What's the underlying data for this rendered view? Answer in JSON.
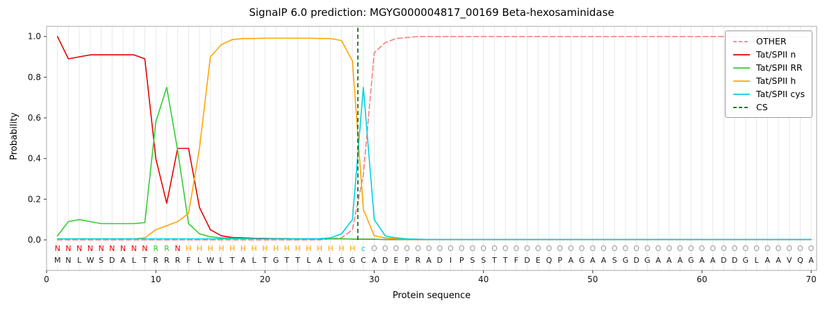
{
  "chart_data": {
    "type": "line",
    "title": "SignalP 6.0 prediction: MGYG000004817_00169 Beta-hexosaminidase",
    "xlabel": "Protein sequence",
    "ylabel": "Probability",
    "xlim": [
      0,
      70.5
    ],
    "ylim": [
      -0.15,
      1.05
    ],
    "xticks": [
      0,
      10,
      20,
      30,
      40,
      50,
      60,
      70
    ],
    "yticks": [
      0.0,
      0.2,
      0.4,
      0.6,
      0.8,
      1.0
    ],
    "grid": "vertical-per-residue",
    "grid_color": "#e8e8e8",
    "frame_color": "#a8a8a8",
    "legend_position": "upper right",
    "sequence": "MNLWSDALTRRRFLWLTALTGTTLALGGCADEPRADIPSSTTFDEQPAGAASGDGAAAGAADDGLAAVQA",
    "annotation": "NNNNNNNNNRRNHHHHHHHHHHHHHHHHcOOOOOOOOOOOOOOOOOOOOOOOOOOOOOOOOOOOOOOOOO",
    "annotation_colors": {
      "N": "#e50000",
      "R": "#32cd32",
      "H": "#ffa500",
      "c": "#00c4d8",
      "O": "#999999"
    },
    "sequence_color": "#1a1a1a",
    "cs": {
      "label": "CS",
      "x": 28.5,
      "color": "#006400",
      "dash": true
    },
    "positions": [
      1,
      2,
      3,
      4,
      5,
      6,
      7,
      8,
      9,
      10,
      11,
      12,
      13,
      14,
      15,
      16,
      17,
      18,
      19,
      20,
      21,
      22,
      23,
      24,
      25,
      26,
      27,
      28,
      29,
      30,
      31,
      32,
      33,
      34,
      35,
      36,
      37,
      38,
      39,
      40,
      41,
      42,
      43,
      44,
      45,
      46,
      47,
      48,
      49,
      50,
      51,
      52,
      53,
      54,
      55,
      56,
      57,
      58,
      59,
      60,
      61,
      62,
      63,
      64,
      65,
      66,
      67,
      68,
      69,
      70
    ],
    "series": [
      {
        "name": "OTHER",
        "color": "#f08080",
        "dash": true,
        "values": [
          0,
          0,
          0,
          0,
          0,
          0,
          0,
          0,
          0,
          0,
          0,
          0,
          0,
          0,
          0,
          0,
          0,
          0,
          0,
          0,
          0,
          0,
          0,
          0,
          0,
          0.005,
          0.01,
          0.05,
          0.32,
          0.92,
          0.97,
          0.99,
          0.995,
          1,
          1,
          1,
          1,
          1,
          1,
          1,
          1,
          1,
          1,
          1,
          1,
          1,
          1,
          1,
          1,
          1,
          1,
          1,
          1,
          1,
          1,
          1,
          1,
          1,
          1,
          1,
          1,
          1,
          1,
          1,
          1,
          1,
          1,
          1,
          1,
          1
        ]
      },
      {
        "name": "Tat/SPII n",
        "color": "#e50000",
        "dash": false,
        "values": [
          1,
          0.89,
          0.9,
          0.91,
          0.91,
          0.91,
          0.91,
          0.91,
          0.89,
          0.4,
          0.18,
          0.45,
          0.45,
          0.16,
          0.05,
          0.02,
          0.012,
          0.01,
          0.008,
          0.007,
          0.006,
          0.006,
          0.005,
          0.005,
          0.005,
          0.005,
          0.005,
          0.004,
          0.004,
          0.003,
          0.002,
          0.002,
          0.002,
          0.002,
          0.002,
          0.002,
          0.002,
          0.002,
          0.002,
          0.002,
          0.002,
          0.002,
          0.002,
          0.002,
          0.002,
          0.002,
          0.002,
          0.002,
          0.002,
          0.002,
          0.002,
          0.002,
          0.002,
          0.002,
          0.002,
          0.002,
          0.002,
          0.002,
          0.002,
          0.002,
          0.002,
          0.002,
          0.002,
          0.002,
          0.002,
          0.002,
          0.002,
          0.002,
          0.002,
          0.002
        ]
      },
      {
        "name": "Tat/SPII RR",
        "color": "#32cd32",
        "dash": false,
        "values": [
          0.02,
          0.09,
          0.1,
          0.09,
          0.08,
          0.08,
          0.08,
          0.08,
          0.085,
          0.58,
          0.75,
          0.44,
          0.08,
          0.03,
          0.015,
          0.01,
          0.008,
          0.007,
          0.006,
          0.005,
          0.005,
          0.005,
          0.005,
          0.005,
          0.005,
          0.005,
          0.005,
          0.004,
          0.003,
          0.003,
          0.002,
          0.002,
          0.002,
          0.002,
          0.002,
          0.002,
          0.002,
          0.002,
          0.002,
          0.002,
          0.002,
          0.002,
          0.002,
          0.002,
          0.002,
          0.002,
          0.002,
          0.002,
          0.002,
          0.002,
          0.002,
          0.002,
          0.002,
          0.002,
          0.002,
          0.002,
          0.002,
          0.002,
          0.002,
          0.002,
          0.002,
          0.002,
          0.002,
          0.002,
          0.002,
          0.002,
          0.002,
          0.002,
          0.002,
          0.002
        ]
      },
      {
        "name": "Tat/SPII h",
        "color": "#ffa500",
        "dash": false,
        "values": [
          0.005,
          0.005,
          0.005,
          0.005,
          0.005,
          0.005,
          0.005,
          0.005,
          0.01,
          0.05,
          0.07,
          0.09,
          0.13,
          0.45,
          0.9,
          0.96,
          0.985,
          0.99,
          0.99,
          0.992,
          0.992,
          0.992,
          0.992,
          0.992,
          0.99,
          0.99,
          0.98,
          0.88,
          0.15,
          0.02,
          0.01,
          0.006,
          0.004,
          0.003,
          0.002,
          0.002,
          0.002,
          0.002,
          0.002,
          0.002,
          0.002,
          0.002,
          0.002,
          0.002,
          0.002,
          0.002,
          0.002,
          0.002,
          0.002,
          0.002,
          0.002,
          0.002,
          0.002,
          0.002,
          0.002,
          0.002,
          0.002,
          0.002,
          0.002,
          0.002,
          0.002,
          0.002,
          0.002,
          0.002,
          0.002,
          0.002,
          0.002,
          0.002,
          0.002,
          0.002
        ]
      },
      {
        "name": "Tat/SPII cys",
        "color": "#00d0e0",
        "dash": false,
        "values": [
          0.005,
          0.005,
          0.005,
          0.005,
          0.005,
          0.005,
          0.005,
          0.005,
          0.005,
          0.005,
          0.005,
          0.005,
          0.005,
          0.005,
          0.005,
          0.005,
          0.005,
          0.005,
          0.005,
          0.005,
          0.005,
          0.005,
          0.005,
          0.005,
          0.006,
          0.01,
          0.03,
          0.1,
          0.75,
          0.1,
          0.02,
          0.01,
          0.005,
          0.003,
          0.002,
          0.002,
          0.002,
          0.002,
          0.002,
          0.002,
          0.002,
          0.002,
          0.002,
          0.002,
          0.002,
          0.002,
          0.002,
          0.002,
          0.002,
          0.002,
          0.002,
          0.002,
          0.002,
          0.002,
          0.002,
          0.002,
          0.002,
          0.002,
          0.002,
          0.002,
          0.002,
          0.002,
          0.002,
          0.002,
          0.002,
          0.002,
          0.002,
          0.002,
          0.002,
          0.002
        ]
      }
    ]
  }
}
